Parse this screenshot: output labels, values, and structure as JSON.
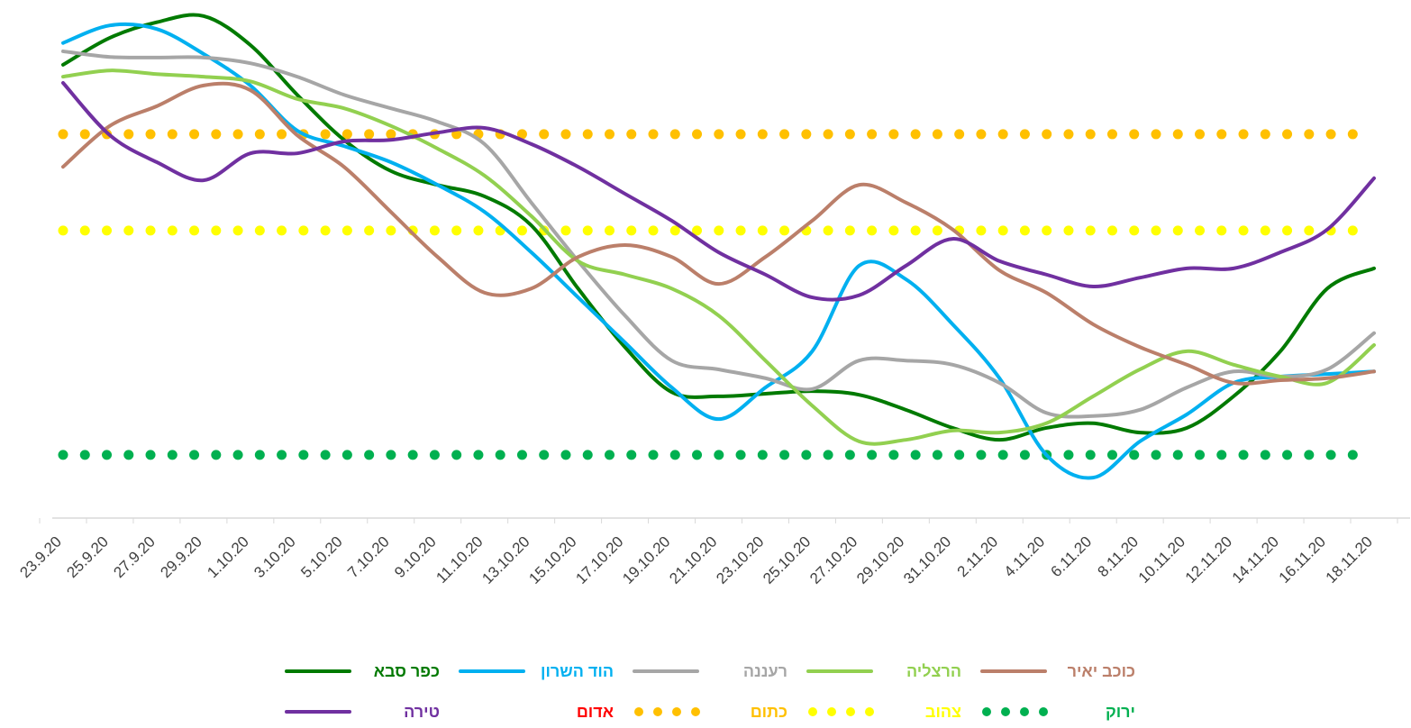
{
  "chart_data": {
    "type": "line",
    "categories": [
      "23.9.20",
      "25.9.20",
      "27.9.20",
      "29.9.20",
      "1.10.20",
      "3.10.20",
      "5.10.20",
      "7.10.20",
      "9.10.20",
      "11.10.20",
      "13.10.20",
      "15.10.20",
      "17.10.20",
      "19.10.20",
      "21.10.20",
      "23.10.20",
      "25.10.20",
      "27.10.20",
      "29.10.20",
      "31.10.20",
      "2.11.20",
      "4.11.20",
      "6.11.20",
      "8.11.20",
      "10.11.20",
      "12.11.20",
      "14.11.20",
      "16.11.20",
      "18.11.20"
    ],
    "ylim": [
      0,
      10
    ],
    "series": [
      {
        "name": "כפר סבא",
        "color": "#007a00",
        "values": [
          8.75,
          9.27,
          9.57,
          9.69,
          9.13,
          8.17,
          7.3,
          6.7,
          6.43,
          6.21,
          5.65,
          4.43,
          3.3,
          2.43,
          2.35,
          2.4,
          2.45,
          2.38,
          2.09,
          1.74,
          1.51,
          1.74,
          1.83,
          1.65,
          1.74,
          2.35,
          3.22,
          4.43,
          4.82
        ]
      },
      {
        "name": "הוד השרון",
        "color": "#00b0f0",
        "values": [
          9.17,
          9.51,
          9.44,
          8.96,
          8.35,
          7.48,
          7.18,
          6.87,
          6.43,
          5.91,
          5.13,
          4.26,
          3.39,
          2.52,
          1.91,
          2.52,
          3.22,
          4.87,
          4.61,
          3.74,
          2.7,
          1.22,
          0.78,
          1.48,
          2.0,
          2.61,
          2.73,
          2.78,
          2.83
        ]
      },
      {
        "name": "רעננה",
        "color": "#a6a6a6",
        "values": [
          9.01,
          8.9,
          8.89,
          8.89,
          8.78,
          8.52,
          8.17,
          7.91,
          7.65,
          7.22,
          6.09,
          4.96,
          3.91,
          3.04,
          2.87,
          2.7,
          2.49,
          3.04,
          3.04,
          2.96,
          2.61,
          2.03,
          1.97,
          2.09,
          2.52,
          2.83,
          2.73,
          2.87,
          3.57
        ]
      },
      {
        "name": "הרצליה",
        "color": "#92d050",
        "values": [
          8.52,
          8.64,
          8.57,
          8.52,
          8.43,
          8.09,
          7.91,
          7.57,
          7.13,
          6.61,
          5.83,
          4.96,
          4.7,
          4.43,
          3.91,
          3.04,
          2.17,
          1.48,
          1.51,
          1.69,
          1.65,
          1.83,
          2.35,
          2.87,
          3.22,
          2.96,
          2.73,
          2.61,
          3.34
        ]
      },
      {
        "name": "כוכב יאיר",
        "color": "#bb7f6a",
        "values": [
          6.78,
          7.57,
          7.95,
          8.35,
          8.26,
          7.39,
          6.78,
          5.91,
          5.04,
          4.35,
          4.43,
          5.04,
          5.27,
          5.04,
          4.52,
          5.04,
          5.74,
          6.43,
          6.09,
          5.57,
          4.78,
          4.35,
          3.74,
          3.3,
          2.96,
          2.61,
          2.66,
          2.7,
          2.83
        ]
      },
      {
        "name": "טירה",
        "color": "#7030a0",
        "values": [
          8.4,
          7.39,
          6.87,
          6.52,
          7.04,
          7.04,
          7.27,
          7.3,
          7.44,
          7.53,
          7.22,
          6.78,
          6.26,
          5.74,
          5.13,
          4.7,
          4.26,
          4.3,
          4.87,
          5.39,
          4.96,
          4.7,
          4.47,
          4.64,
          4.82,
          4.82,
          5.13,
          5.57,
          6.56
        ]
      }
    ],
    "reference_lines": [
      {
        "name": "אדום",
        "color": "#ff0000",
        "value": null
      },
      {
        "name": "כתום",
        "color": "#ffc000",
        "value": 7.41
      },
      {
        "name": "צהוב",
        "color": "#ffff00",
        "value": 5.55
      },
      {
        "name": "ירוק",
        "color": "#00b050",
        "value": 1.22
      }
    ]
  }
}
